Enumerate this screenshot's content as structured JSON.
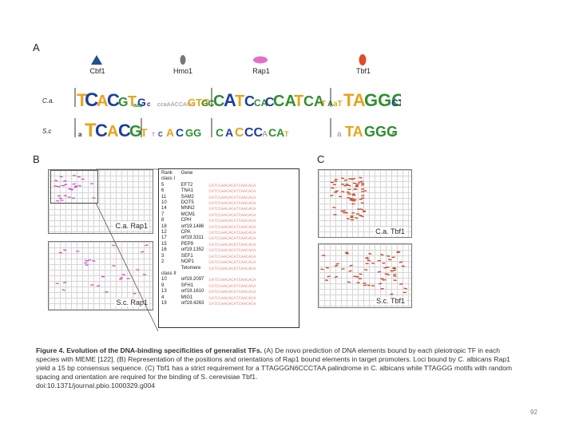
{
  "panels": {
    "a": "A",
    "b": "B",
    "c": "C"
  },
  "tfs": [
    {
      "name": "Cbf1",
      "shape": "triangle",
      "color": "#1f4f8f"
    },
    {
      "name": "Hmo1",
      "shape": "ellipse",
      "color": "#777777"
    },
    {
      "name": "Rap1",
      "shape": "ellipse",
      "color": "#e36fc7"
    },
    {
      "name": "Tbf1",
      "shape": "ellipse",
      "color": "#e24a2b"
    }
  ],
  "species": {
    "ca": "C.a.",
    "sc": "S.c"
  },
  "grids": {
    "b_top": "C.a. Rap1",
    "b_bottom": "S.c. Rap1",
    "c_top": "C.a. Tbf1",
    "c_bottom": "S.c. Tbf1",
    "dot_color_rap1": "#d04fc0",
    "dot_color_tbf1": "#c8401e"
  },
  "table": {
    "headers": {
      "rank": "Rank",
      "gene": "Gene"
    },
    "class1": "class I",
    "class2": "class II",
    "rows1": [
      {
        "rank": "5",
        "gene": "EFT2",
        "seq": "CATCCAACACATCAACACA"
      },
      {
        "rank": "6",
        "gene": "TNA1",
        "seq": "CATCCAACACATCAACACA"
      },
      {
        "rank": "11",
        "gene": "SAM2",
        "seq": "CATCCAACACATCAACACA"
      },
      {
        "rank": "10",
        "gene": "DOT5",
        "seq": "CATCCAACACATCAACACA"
      },
      {
        "rank": "14",
        "gene": "MNN2",
        "seq": "CATCCAACACATCAACACA"
      },
      {
        "rank": "7",
        "gene": "MCM1",
        "seq": "CATCCAACACATCAACACA"
      },
      {
        "rank": "8",
        "gene": "CPH",
        "seq": "CATCCAACACATCAACACA"
      },
      {
        "rank": "18",
        "gene": "orf19.1486",
        "seq": "CATCCAACACATCAACACA"
      },
      {
        "rank": "12",
        "gene": "CPA",
        "seq": "CATCCAACACATCAACACA"
      },
      {
        "rank": "17",
        "gene": "orf19.3311",
        "seq": "CATCCAACACATCAACACA"
      },
      {
        "rank": "15",
        "gene": "PEP9",
        "seq": "CATCCAACACATCAACACA"
      },
      {
        "rank": "16",
        "gene": "orf19.1352",
        "seq": "CATCCAACACATCAACACA"
      },
      {
        "rank": "3",
        "gene": "SEF1",
        "seq": "CATCCAACACATCAACACA"
      },
      {
        "rank": "2",
        "gene": "NOP1",
        "seq": "CATCCAACACATCAACACA"
      },
      {
        "rank": "",
        "gene": "Telomere",
        "seq": "CATCCAACACATCAACACA"
      }
    ],
    "rows2": [
      {
        "rank": "10",
        "gene": "orf19.2097",
        "seq": "CATCCAACACATCAACACA"
      },
      {
        "rank": "9",
        "gene": "SFH1",
        "seq": "CATCCAACACATCAACACA"
      },
      {
        "rank": "13",
        "gene": "orf19.1610",
        "seq": "CATCCAACACATCAACACA"
      },
      {
        "rank": "4",
        "gene": "MIG1",
        "seq": "CATCCAACACATCAACACA"
      },
      {
        "rank": "19",
        "gene": "orf19.4263",
        "seq": "CATCCAACACATCAACACA"
      }
    ]
  },
  "caption": {
    "title": "Figure 4. Evolution of the DNA-binding specificities of generalist TFs.",
    "body": " (A) De novo prediction of DNA elements bound by each pleiotropic TF in each species with MEME [122]. (B) Representation of the positions and orientations of Rap1 bound elements in target promoters. Loci bound by C. albicans Rap1 yield a 15 bp consensus sequence. (C) Tbf1 has a strict requirement for a TTAGGGN6CCCTAA palindrome in C. albicans while TTAGGG motifs with random spacing and orientation are required for the binding of S. cerevisiae Tbf1.",
    "doi": "doi:10.1371/journal.pbio.1000329.g004"
  },
  "page_number": "92"
}
